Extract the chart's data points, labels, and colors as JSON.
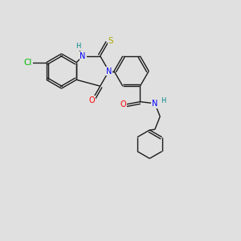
{
  "bg_color": "#e0e0e0",
  "bond_color": "#1a1a1a",
  "N_color": "#0000ff",
  "O_color": "#ff0000",
  "S_color": "#aaaa00",
  "Cl_color": "#00bb00",
  "H_color": "#008888",
  "line_width": 1.0,
  "font_size": 7.0,
  "xlim": [
    0,
    10
  ],
  "ylim": [
    0,
    10
  ]
}
